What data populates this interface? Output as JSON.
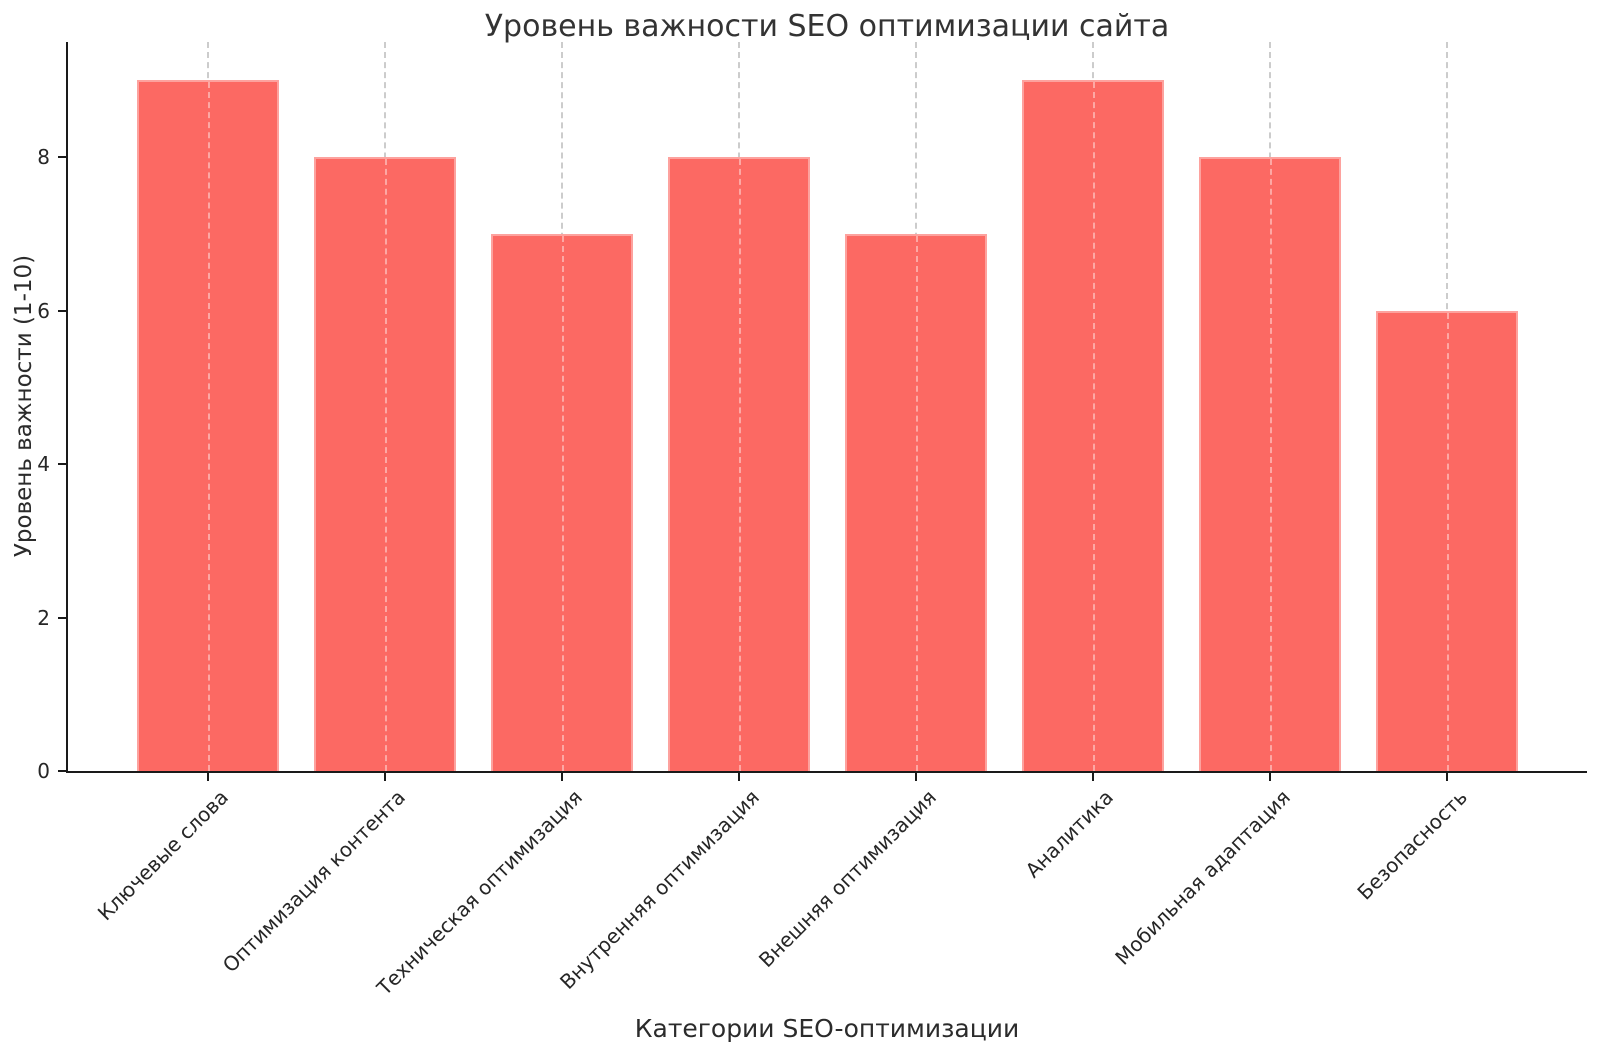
{
  "chart_data": {
    "type": "bar",
    "title": "Уровень важности SEO оптимизации сайта",
    "xlabel": "Категории SEO-оптимизации",
    "ylabel": "Уровень важности (1-10)",
    "categories": [
      "Ключевые слова",
      "Оптимизация контента",
      "Техническая оптимизация",
      "Внутренняя оптимизация",
      "Внешняя оптимизация",
      "Аналитика",
      "Мобильная адаптация",
      "Безопасность"
    ],
    "values": [
      9,
      8,
      7,
      8,
      7,
      9,
      8,
      6
    ],
    "yticks": [
      0,
      2,
      4,
      6,
      8
    ],
    "ylim": [
      0,
      9.5
    ],
    "grid": "vertical-dashed-at-bar-centers",
    "grid_color": "#cccccc",
    "bar_color": "#fc6963",
    "bar_edge_color": "#fd9d97",
    "spine_color": "#1a1a1a",
    "legend": "none"
  }
}
